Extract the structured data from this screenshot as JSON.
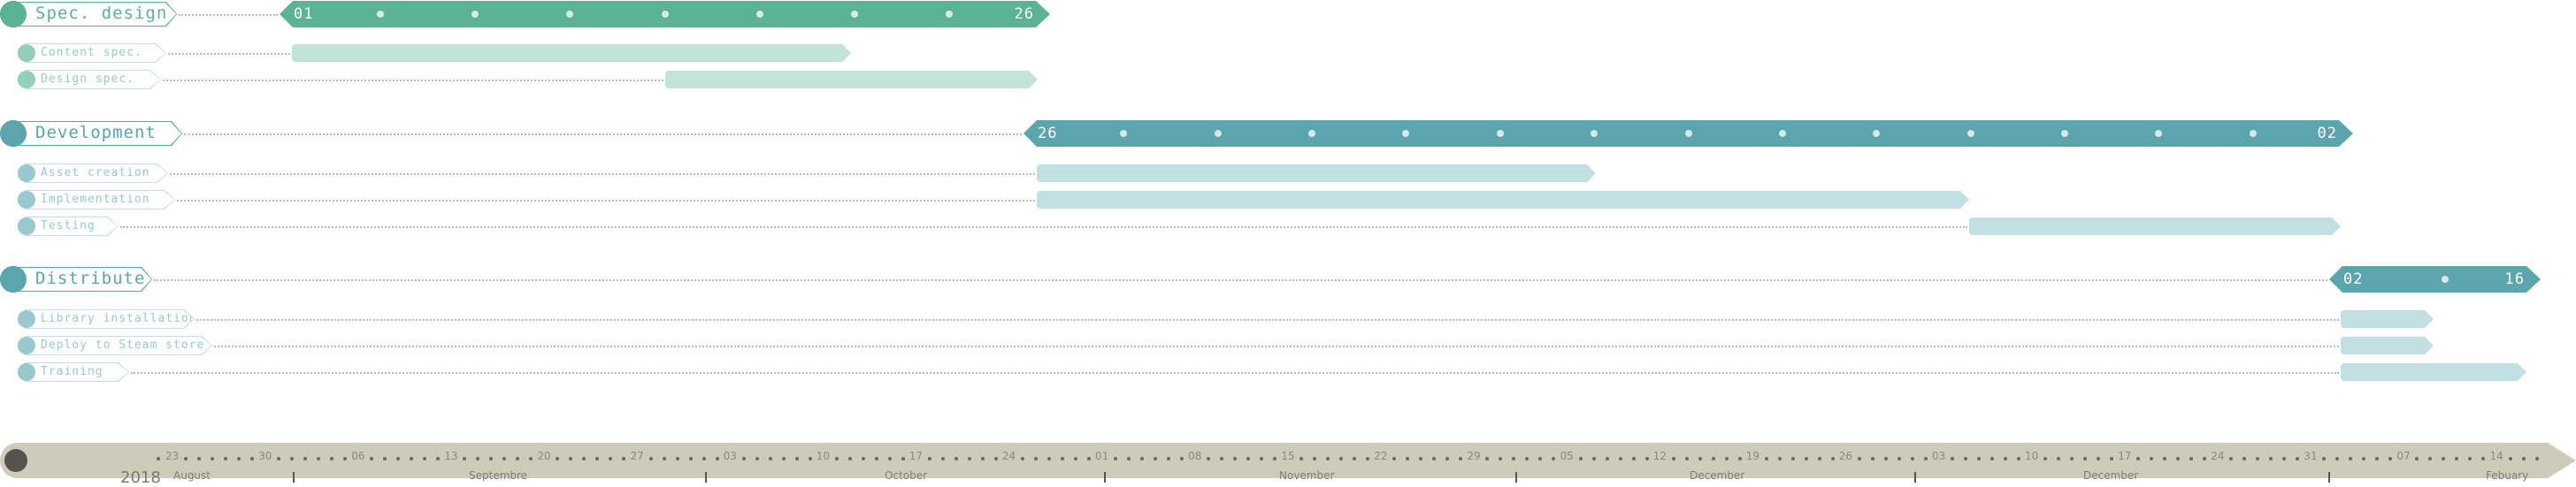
{
  "colors": {
    "spec": "#5ab392",
    "spec_light": "#c2e3d7",
    "spec_sub": "#94d0b8",
    "dev": "#5ba5ad",
    "dev_light": "#c2dfe2",
    "dev_sub": "#98c9cf",
    "timeline": "#cfcbbb",
    "timeline_knob": "#55534d"
  },
  "groups": [
    {
      "id": "spec",
      "label": "Spec. design",
      "start_label": "01",
      "end_label": "26",
      "tasks": [
        {
          "label": "Content spec."
        },
        {
          "label": "Design spec."
        }
      ]
    },
    {
      "id": "dev",
      "label": "Development",
      "start_label": "26",
      "end_label": "02",
      "tasks": [
        {
          "label": "Asset creation"
        },
        {
          "label": "Implementation"
        },
        {
          "label": "Testing"
        }
      ]
    },
    {
      "id": "dist",
      "label": "Distribute",
      "start_label": "02",
      "end_label": "16",
      "tasks": [
        {
          "label": "Library installation"
        },
        {
          "label": "Deploy to Steam store"
        },
        {
          "label": "Training"
        }
      ]
    }
  ],
  "timeline": {
    "year": "2018",
    "day_labels": [
      "23",
      "30",
      "06",
      "13",
      "20",
      "27",
      "03",
      "10",
      "17",
      "24",
      "01",
      "08",
      "15",
      "22",
      "29",
      "05",
      "12",
      "19",
      "26",
      "03",
      "10",
      "17",
      "24",
      "31",
      "07",
      "14"
    ],
    "months": [
      "August",
      "Septembre",
      "October",
      "November",
      "December",
      "December",
      "Febuary"
    ]
  }
}
